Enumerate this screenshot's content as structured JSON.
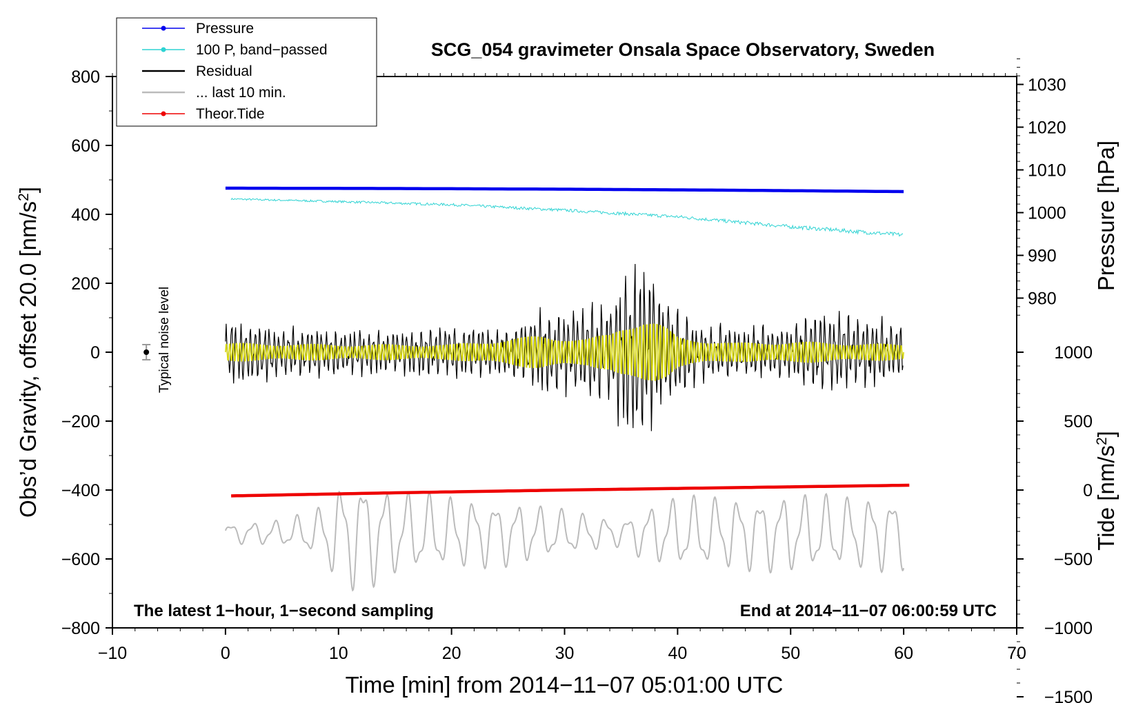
{
  "chart_data": {
    "type": "line",
    "title": "SCG_054 gravimeter Onsala Space Observatory, Sweden",
    "xlabel": "Time [min] from 2014−11−07 05:01:00 UTC",
    "ylabel": "Obs’d Gravity, offset 20.0 [nm/s²]",
    "ylabel_parts": {
      "before": "Obs’d Gravity, offset 20.0 [nm/s",
      "sup": "2",
      "after": "]"
    },
    "xlim": [
      -10,
      70
    ],
    "ylim": [
      -800,
      800
    ],
    "xticks": [
      -10,
      0,
      10,
      20,
      30,
      40,
      50,
      60,
      70
    ],
    "xtick_labels": [
      "−10",
      "0",
      "10",
      "20",
      "30",
      "40",
      "50",
      "60",
      "70"
    ],
    "yticks": [
      -800,
      -600,
      -400,
      -200,
      0,
      200,
      400,
      600,
      800
    ],
    "ytick_labels": [
      "−800",
      "−600",
      "−400",
      "−200",
      "0",
      "200",
      "400",
      "600",
      "800"
    ],
    "pressure_axis": {
      "label": "Pressure [hPa]",
      "ticks": [
        980,
        990,
        1000,
        1010,
        1020,
        1030
      ],
      "tick_labels": [
        "980",
        "990",
        "1000",
        "1010",
        "1020",
        "1030"
      ],
      "gravity_at_1000": 405,
      "gravity_per_hpa": 12.4
    },
    "tide_axis": {
      "label_parts": {
        "before": "Tide [nm/s",
        "sup": "2",
        "after": "]"
      },
      "ticks": [
        -1500,
        -1000,
        -500,
        0,
        500,
        1000
      ],
      "tick_labels": [
        "−1500",
        "−1000",
        "−500",
        "0",
        "500",
        "1000"
      ],
      "gravity_at_0": -400,
      "gravity_per_unit": 0.4
    },
    "legend": [
      {
        "label": "Pressure",
        "color": "#0000ee",
        "marker": true
      },
      {
        "label": "100 P, band−passed",
        "color": "#2fd3d3",
        "marker": true
      },
      {
        "label": "Residual",
        "color": "#000000",
        "marker": false
      },
      {
        "label": "... last 10 min.",
        "color": "#bbbbbb",
        "marker": false
      },
      {
        "label": "Theor.Tide",
        "color": "#ee0000",
        "marker": true
      }
    ],
    "series": [
      {
        "name": "Pressure",
        "color": "#0000ee",
        "x": [
          0,
          15,
          30,
          45,
          60
        ],
        "y": [
          476,
          475,
          473,
          470,
          466
        ]
      },
      {
        "name": "100 P, band−passed",
        "color": "#2fd3d3",
        "x": [
          0,
          10,
          20,
          30,
          40,
          50,
          60
        ],
        "y": [
          445,
          437,
          428,
          412,
          393,
          364,
          340
        ]
      },
      {
        "name": "Residual",
        "color": "#000000",
        "envelope_x": [
          0,
          5,
          10,
          15,
          20,
          25,
          28,
          30,
          32,
          34,
          35,
          36,
          37,
          38,
          39,
          40,
          42,
          45,
          48,
          50,
          52,
          55,
          58,
          60
        ],
        "envelope_amp": [
          110,
          80,
          70,
          70,
          85,
          80,
          130,
          130,
          140,
          180,
          240,
          270,
          290,
          230,
          180,
          140,
          95,
          80,
          85,
          90,
          130,
          120,
          100,
          90
        ]
      },
      {
        "name": "Residual yellow (filtered)",
        "color": "#d6d60a",
        "envelope_x": [
          0,
          10,
          20,
          28,
          32,
          34,
          35,
          36,
          37,
          38,
          39,
          40,
          45,
          50,
          55,
          60
        ],
        "envelope_amp": [
          30,
          25,
          25,
          55,
          45,
          60,
          90,
          110,
          120,
          105,
          80,
          50,
          30,
          35,
          30,
          25
        ]
      },
      {
        "name": "... last 10 min.",
        "color": "#bbbbbb",
        "baseline": -525,
        "envelope_x": [
          0,
          5,
          8,
          10,
          12,
          13,
          15,
          20,
          25,
          30,
          35,
          37,
          40,
          45,
          50,
          55,
          58,
          60
        ],
        "envelope_amp": [
          30,
          40,
          70,
          150,
          180,
          160,
          130,
          110,
          100,
          70,
          40,
          80,
          110,
          110,
          120,
          110,
          115,
          110
        ]
      },
      {
        "name": "Theor.Tide",
        "color": "#ee0000",
        "x": [
          0.5,
          15,
          30,
          45,
          60.5
        ],
        "y": [
          -417,
          -408,
          -400,
          -393,
          -386
        ]
      }
    ],
    "noise_bar": {
      "x": -7,
      "y": 0,
      "err": 22,
      "label": "Typical noise level"
    },
    "annotations": {
      "left": "The latest 1−hour, 1−second sampling",
      "right": "End at 2014−11−07 06:00:59 UTC"
    }
  }
}
